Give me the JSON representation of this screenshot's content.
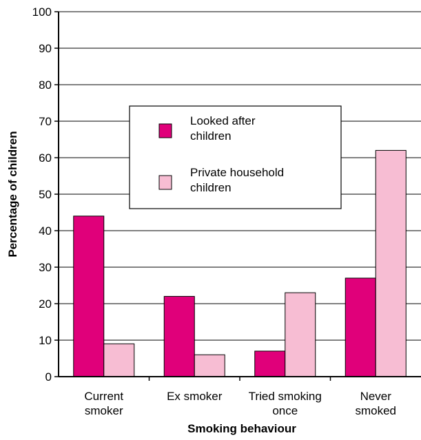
{
  "chart_data": {
    "type": "bar",
    "title": "",
    "xlabel": "Smoking behaviour",
    "ylabel": "Percentage of children",
    "ylim": [
      0,
      100
    ],
    "yticks": [
      0,
      10,
      20,
      30,
      40,
      50,
      60,
      70,
      80,
      90,
      100
    ],
    "grid": true,
    "legend_position": "upper-center",
    "categories": [
      [
        "Current",
        "smoker"
      ],
      [
        "Ex smoker"
      ],
      [
        "Tried smoking",
        "once"
      ],
      [
        "Never",
        "smoked"
      ]
    ],
    "series": [
      {
        "name": [
          "Looked after",
          "children"
        ],
        "color": "#e0007a",
        "values": [
          44,
          22,
          7,
          27
        ]
      },
      {
        "name": [
          "Private household",
          "children"
        ],
        "color": "#f7bdd3",
        "values": [
          9,
          6,
          23,
          62
        ]
      }
    ]
  }
}
